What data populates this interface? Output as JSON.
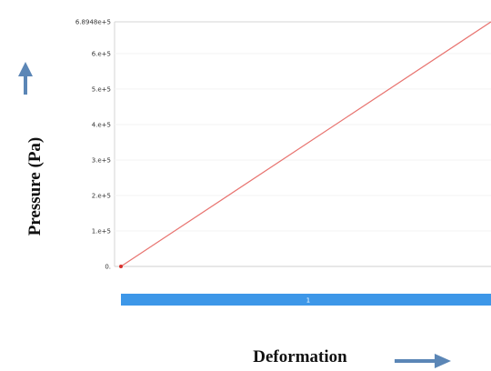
{
  "chart_data": {
    "type": "line",
    "title": "",
    "xlabel": "Deformation",
    "ylabel": "Pressure (Pa)",
    "ylim": [
      0,
      689480
    ],
    "y_ticks": [
      "0.",
      "1.e+5",
      "2.e+5",
      "3.e+5",
      "4.e+5",
      "5.e+5",
      "6.e+5",
      "6.8948e+5"
    ],
    "y_tick_values": [
      0,
      100000,
      200000,
      300000,
      400000,
      500000,
      600000,
      689480
    ],
    "xlim": [
      0,
      1
    ],
    "x": [
      0,
      1
    ],
    "series": [
      {
        "values": [
          0,
          689480
        ],
        "color": "#e8736f"
      }
    ],
    "timeline": {
      "label": "1",
      "color": "#3d97e8"
    },
    "grid": true,
    "arrow_color": "#5b86b6"
  }
}
